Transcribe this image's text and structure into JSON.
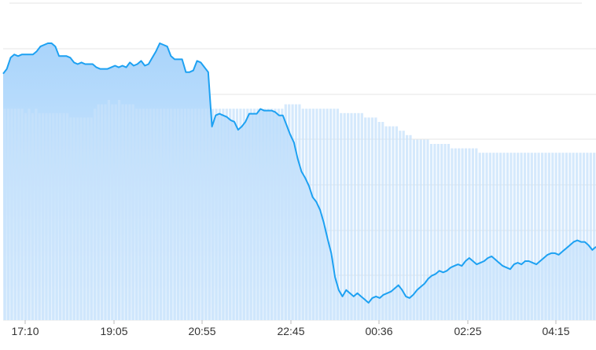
{
  "chart_data": {
    "type": "area",
    "title": "",
    "xlabel": "",
    "ylabel": "",
    "x_tick_labels": [
      "17:10",
      "19:05",
      "20:55",
      "22:45",
      "00:36",
      "02:25",
      "04:15"
    ],
    "grid": "horizontal",
    "colors": {
      "line": "#1da1f2",
      "area_top": "#a9d4fb",
      "area_bottom": "#e8f4fe",
      "bars": "#c7e2fb",
      "grid": "#e6e6e6",
      "tick_text": "#333333"
    },
    "y_range": [
      0,
      100
    ],
    "line_values": [
      55,
      58,
      65,
      67,
      66,
      67,
      67,
      67,
      67,
      69,
      72,
      73,
      74,
      74,
      72,
      66,
      66,
      66,
      65,
      62,
      61,
      62,
      61,
      61,
      61,
      59,
      58,
      58,
      58,
      59,
      60,
      59,
      60,
      59,
      62,
      60,
      61,
      63,
      60,
      61,
      65,
      69,
      74,
      73,
      72,
      66,
      64,
      64,
      64,
      56,
      56,
      57,
      63,
      62,
      59,
      56,
      22,
      29,
      30,
      29,
      28,
      26,
      25,
      20,
      22,
      25,
      30,
      30,
      30,
      33,
      32,
      32,
      32,
      31,
      29,
      29,
      23,
      17,
      12,
      2,
      -6,
      -10,
      -15,
      -22,
      -25,
      -30,
      -38,
      -48,
      -57,
      -72,
      -80,
      -84,
      -80,
      -82,
      -84,
      -82,
      -84,
      -86,
      -88,
      -85,
      -84,
      -85,
      -83,
      -82,
      -81,
      -79,
      -77,
      -80,
      -84,
      -85,
      -83,
      -80,
      -78,
      -76,
      -73,
      -71,
      -70,
      -68,
      -69,
      -68,
      -66,
      -65,
      -64,
      -65,
      -62,
      -60,
      -62,
      -64,
      -63,
      -62,
      -60,
      -59,
      -61,
      -63,
      -65,
      -66,
      -67,
      -64,
      -63,
      -64,
      -62,
      -62,
      -63,
      -64,
      -62,
      -60,
      -58,
      -57,
      -57,
      -58,
      -56,
      -54,
      -52,
      -50,
      -49,
      -50,
      -50,
      -52,
      -55,
      -53
    ],
    "bar_values": [
      48,
      48,
      48,
      48,
      48,
      48,
      47,
      48,
      47,
      48,
      47,
      47,
      47,
      47,
      47,
      47,
      47,
      47,
      47,
      46,
      46,
      46,
      46,
      46,
      46,
      46,
      48,
      49,
      49,
      49,
      50,
      49,
      49,
      50,
      49,
      49,
      49,
      49,
      48,
      48,
      48,
      48,
      48,
      48,
      48,
      48,
      48,
      48,
      48,
      48,
      48,
      48,
      48,
      48,
      48,
      48,
      48,
      48,
      48,
      48,
      48,
      48,
      48,
      48,
      48,
      48,
      48,
      48,
      48,
      48,
      48,
      48,
      48,
      48,
      48,
      48,
      48,
      48,
      48,
      48,
      48,
      49,
      49,
      49,
      49,
      49,
      48,
      48,
      48,
      48,
      48,
      48,
      48,
      48,
      48,
      48,
      48,
      47,
      47,
      47,
      47,
      47,
      47,
      47,
      46,
      46,
      46,
      46,
      45,
      45,
      44,
      44,
      44,
      44,
      43,
      43,
      42,
      42,
      41,
      41,
      41,
      41,
      41,
      40,
      40,
      40,
      40,
      40,
      40,
      39,
      39,
      39,
      39,
      39,
      39,
      39,
      39,
      38,
      38,
      38,
      38,
      38,
      38,
      38,
      38,
      38,
      38,
      38,
      38,
      38,
      38,
      38,
      38,
      38,
      38,
      38,
      38,
      38,
      38,
      38,
      38,
      38,
      38,
      38,
      38,
      38,
      38,
      38,
      38,
      38,
      38
    ]
  }
}
